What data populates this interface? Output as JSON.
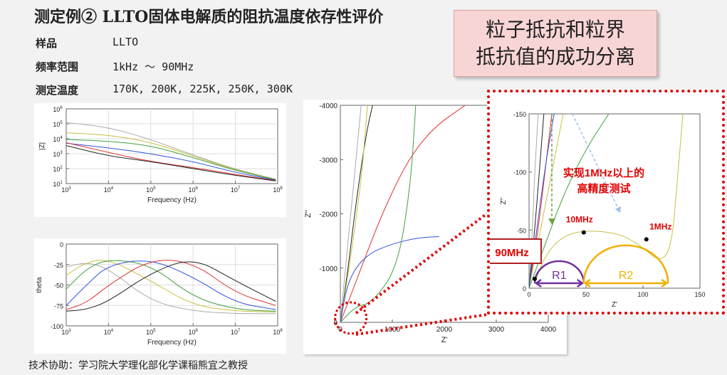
{
  "header": {
    "title": "测定例② LLTO固体电解质的阻抗温度依存性评价",
    "rows": [
      {
        "label": "样品",
        "value": "LLTO"
      },
      {
        "label": "频率范围",
        "value": "1kHz ～ 90MHz"
      },
      {
        "label": "测定温度",
        "value": "170K, 200K, 225K, 250K, 300K"
      }
    ]
  },
  "callout": {
    "line1": "粒子抵抗和粒界",
    "line2": "抵抗值的成功分离"
  },
  "footer": "技术协助：学习院大学理化部化学课稲熊宜之教授",
  "colors": {
    "black": "#222222",
    "red": "#e03030",
    "blue": "#3050e0",
    "green": "#40a040",
    "yellow": "#c8c040",
    "gray": "#aaaaaa",
    "accent_red": "#e00000",
    "purple": "#7030a0",
    "gold": "#f0b000"
  },
  "chart_data": [
    {
      "type": "line",
      "xlabel": "Frequency (Hz)",
      "ylabel": "|Z|",
      "xscale": "log",
      "yscale": "log",
      "xlim": [
        1000,
        100000000
      ],
      "ylim": [
        10,
        1000000
      ],
      "xticks": [
        "10^3",
        "10^4",
        "10^5",
        "10^6",
        "10^7",
        "10^8"
      ],
      "yticks": [
        "10^1",
        "10^2",
        "10^3",
        "10^4",
        "10^5",
        "10^6"
      ],
      "series": [
        {
          "color": "gray",
          "x": [
            1000,
            10000,
            100000,
            1000000,
            10000000,
            90000000
          ],
          "y": [
            120000,
            60000,
            9000,
            800,
            90,
            20
          ]
        },
        {
          "color": "yellow",
          "x": [
            1000,
            10000,
            100000,
            1000000,
            10000000,
            90000000
          ],
          "y": [
            25000,
            18000,
            6000,
            700,
            80,
            19
          ]
        },
        {
          "color": "green",
          "x": [
            1000,
            10000,
            100000,
            1000000,
            10000000,
            90000000
          ],
          "y": [
            9000,
            7000,
            3500,
            550,
            75,
            18
          ]
        },
        {
          "color": "blue",
          "x": [
            1000,
            10000,
            100000,
            1000000,
            10000000,
            90000000
          ],
          "y": [
            5000,
            2500,
            1000,
            300,
            55,
            17
          ]
        },
        {
          "color": "red",
          "x": [
            1000,
            10000,
            100000,
            1000000,
            10000000,
            90000000
          ],
          "y": [
            5500,
            1200,
            300,
            120,
            40,
            16
          ]
        },
        {
          "color": "black",
          "x": [
            1000,
            10000,
            100000,
            1000000,
            10000000,
            90000000
          ],
          "y": [
            3500,
            700,
            300,
            100,
            35,
            15
          ]
        }
      ]
    },
    {
      "type": "line",
      "xlabel": "Frequency (Hz)",
      "ylabel": "theta",
      "xscale": "log",
      "xlim": [
        1000,
        100000000
      ],
      "ylim": [
        -100,
        0
      ],
      "xticks": [
        "10^3",
        "10^4",
        "10^5",
        "10^6",
        "10^7",
        "10^8"
      ],
      "yticks": [
        "-100",
        "-75",
        "-50",
        "-25",
        "0"
      ],
      "series": [
        {
          "color": "gray",
          "x": [
            1000,
            3000,
            10000,
            100000,
            1000000,
            10000000,
            90000000
          ],
          "y": [
            -28,
            -22,
            -30,
            -70,
            -82,
            -85,
            -85
          ]
        },
        {
          "color": "yellow",
          "x": [
            1000,
            3000,
            10000,
            100000,
            1000000,
            10000000,
            90000000
          ],
          "y": [
            -38,
            -22,
            -18,
            -45,
            -75,
            -82,
            -83
          ]
        },
        {
          "color": "green",
          "x": [
            1000,
            3000,
            10000,
            100000,
            1000000,
            10000000,
            90000000
          ],
          "y": [
            -55,
            -30,
            -18,
            -25,
            -65,
            -80,
            -82
          ]
        },
        {
          "color": "blue",
          "x": [
            1000,
            3000,
            10000,
            100000,
            1000000,
            10000000,
            90000000
          ],
          "y": [
            -75,
            -50,
            -25,
            -18,
            -40,
            -72,
            -80
          ]
        },
        {
          "color": "red",
          "x": [
            1000,
            3000,
            10000,
            100000,
            1000000,
            10000000,
            90000000
          ],
          "y": [
            -80,
            -72,
            -50,
            -18,
            -22,
            -60,
            -75
          ]
        },
        {
          "color": "black",
          "x": [
            1000,
            3000,
            10000,
            100000,
            1000000,
            10000000,
            90000000
          ],
          "y": [
            -82,
            -80,
            -70,
            -35,
            -16,
            -45,
            -70
          ]
        }
      ]
    },
    {
      "type": "line",
      "xlabel": "Z'",
      "ylabel": "Z''",
      "xlim": [
        0,
        4000
      ],
      "ylim": [
        0,
        -4000
      ],
      "xticks": [
        "0",
        "1000",
        "2000",
        "3000",
        "4000"
      ],
      "yticks": [
        "0",
        "-1000",
        "-2000",
        "-3000",
        "-4000"
      ],
      "series": [
        {
          "color": "gray",
          "x": [
            0,
            100,
            200,
            300,
            400
          ],
          "y": [
            0,
            -1000,
            -2000,
            -3000,
            -4000
          ]
        },
        {
          "color": "black",
          "x": [
            0,
            150,
            300,
            500,
            620
          ],
          "y": [
            0,
            -1000,
            -2200,
            -3500,
            -4000
          ]
        },
        {
          "color": "yellow",
          "x": [
            0,
            200,
            400,
            480,
            520
          ],
          "y": [
            0,
            -1200,
            -2600,
            -3500,
            -4000
          ]
        },
        {
          "color": "red",
          "x": [
            0,
            400,
            800,
            1300,
            1800,
            2400
          ],
          "y": [
            0,
            -1000,
            -2000,
            -3000,
            -3600,
            -4000
          ]
        },
        {
          "color": "green",
          "x": [
            0,
            300,
            600,
            1100,
            1350,
            1450
          ],
          "y": [
            0,
            -300,
            -350,
            -1000,
            -2500,
            -4000
          ]
        },
        {
          "color": "blue",
          "x": [
            0,
            150,
            500,
            1000,
            1500,
            1900
          ],
          "y": [
            0,
            -800,
            -1250,
            -1450,
            -1560,
            -1580
          ]
        }
      ],
      "annotations": [
        {
          "type": "zoom-region",
          "x": [
            0,
            450
          ],
          "y": [
            -100,
            100
          ]
        }
      ]
    },
    {
      "type": "line",
      "xlabel": "Z'",
      "ylabel": "Z''",
      "xlim": [
        0,
        150
      ],
      "ylim": [
        0,
        -150
      ],
      "xticks": [
        "0",
        "50",
        "100",
        "150"
      ],
      "yticks": [
        "0",
        "-50",
        "-100",
        "-150"
      ],
      "series": [
        {
          "color": "gray",
          "x": [
            0,
            3,
            5,
            8
          ],
          "y": [
            0,
            -50,
            -100,
            -150
          ]
        },
        {
          "color": "black",
          "x": [
            0,
            5,
            9,
            13
          ],
          "y": [
            0,
            -50,
            -100,
            -150
          ]
        },
        {
          "color": "red",
          "x": [
            0,
            8,
            14,
            20
          ],
          "y": [
            0,
            -50,
            -100,
            -150
          ]
        },
        {
          "color": "yellow",
          "x": [
            0,
            10,
            20,
            30
          ],
          "y": [
            0,
            -50,
            -100,
            -150
          ]
        },
        {
          "color": "blue",
          "x": [
            0,
            8,
            15,
            22
          ],
          "y": [
            0,
            -60,
            -110,
            -150
          ]
        },
        {
          "color": "green",
          "x": [
            0,
            15,
            30,
            50,
            70
          ],
          "y": [
            0,
            -40,
            -80,
            -120,
            -150
          ]
        },
        {
          "color": "yellow",
          "x": [
            5,
            15,
            30,
            50,
            80,
            100,
            115,
            125,
            130,
            135
          ],
          "y": [
            -5,
            -30,
            -45,
            -50,
            -47,
            -35,
            -22,
            -35,
            -90,
            -150
          ]
        }
      ],
      "markers": [
        {
          "label": "90MHz",
          "x": 5,
          "y": -8
        },
        {
          "label": "10MHz",
          "x": 48,
          "y": -48
        },
        {
          "label": "1MHz",
          "x": 103,
          "y": -42
        }
      ],
      "annotation_text": [
        "实现1MHz以上的",
        "高精度测试"
      ],
      "arcs": [
        {
          "label": "R1",
          "x": [
            5,
            48
          ]
        },
        {
          "label": "R2",
          "x": [
            48,
            122
          ]
        }
      ]
    }
  ]
}
